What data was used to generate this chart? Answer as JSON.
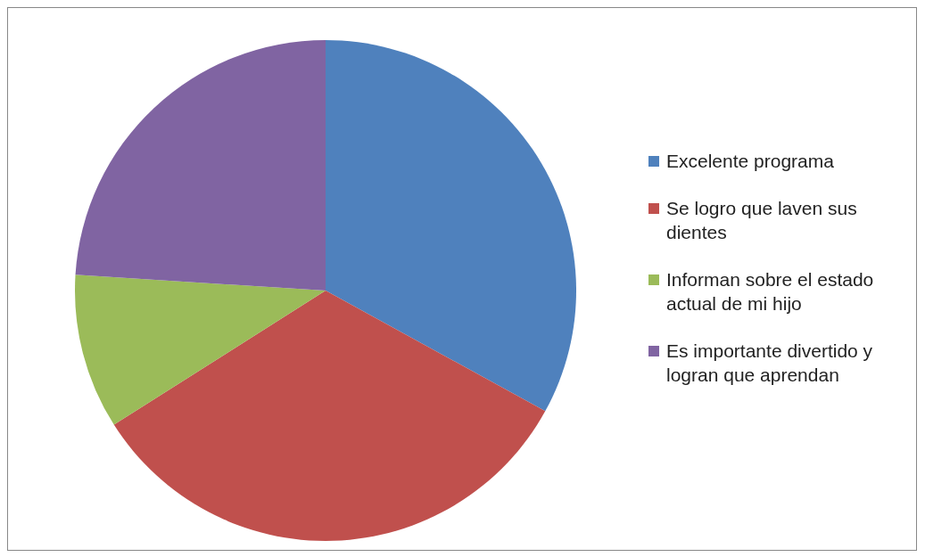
{
  "chart_data": {
    "type": "pie",
    "categories": [
      "Excelente programa",
      "Se logro que laven sus dientes",
      "Informan sobre el estado actual de mi hijo",
      "Es importante divertido y logran que aprendan"
    ],
    "values": [
      33,
      33,
      10,
      24
    ],
    "colors": [
      "#4f81bd",
      "#c0504d",
      "#9bbb59",
      "#8064a2"
    ],
    "legend": "right"
  }
}
